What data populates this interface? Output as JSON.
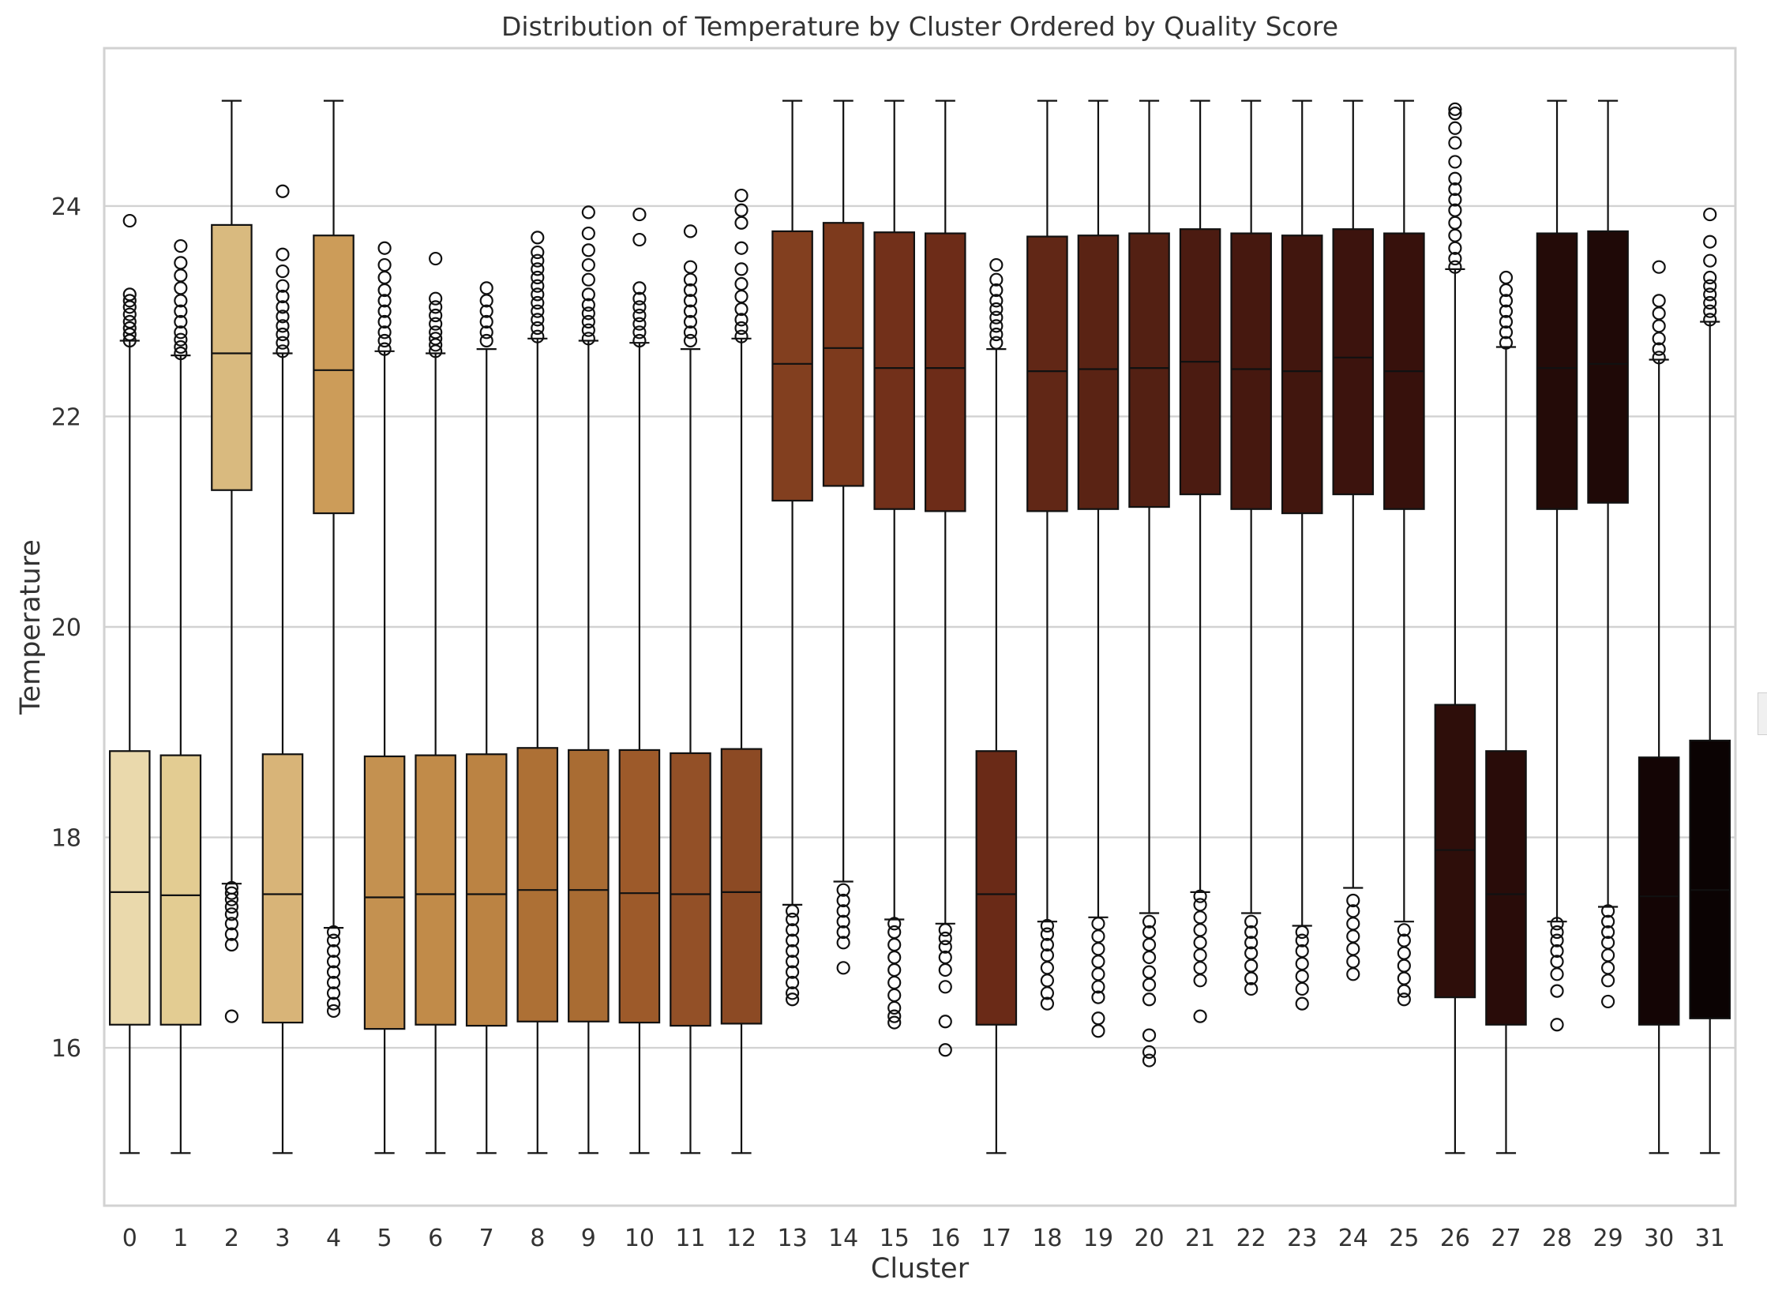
{
  "chart_data": {
    "type": "box",
    "title": "Distribution of Temperature by Cluster Ordered by Quality Score",
    "xlabel": "Cluster",
    "ylabel": "Temperature",
    "ylim": [
      14.5,
      25.5
    ],
    "yticks": [
      16,
      18,
      20,
      22,
      24
    ],
    "grid": true,
    "categories": [
      "0",
      "1",
      "2",
      "3",
      "4",
      "5",
      "6",
      "7",
      "8",
      "9",
      "10",
      "11",
      "12",
      "13",
      "14",
      "15",
      "16",
      "17",
      "18",
      "19",
      "20",
      "21",
      "22",
      "23",
      "24",
      "25",
      "26",
      "27",
      "28",
      "29",
      "30",
      "31"
    ],
    "boxes": [
      {
        "cluster": "0",
        "whisker_low": 15.0,
        "q1": 16.22,
        "median": 17.48,
        "q3": 18.82,
        "whisker_high": 22.72,
        "color": "#ead9ac",
        "outliers_low": [],
        "outliers_high": [
          22.72,
          22.78,
          22.84,
          22.9,
          22.97,
          23.04,
          23.1,
          23.16,
          23.86
        ]
      },
      {
        "cluster": "1",
        "whisker_low": 15.0,
        "q1": 16.22,
        "median": 17.45,
        "q3": 18.78,
        "whisker_high": 22.58,
        "color": "#e3cc92",
        "outliers_low": [],
        "outliers_high": [
          22.6,
          22.66,
          22.73,
          22.8,
          22.9,
          23.0,
          23.1,
          23.22,
          23.34,
          23.46,
          23.62
        ]
      },
      {
        "cluster": "2",
        "whisker_low": 17.56,
        "q1": 21.3,
        "median": 22.6,
        "q3": 23.82,
        "whisker_high": 25.0,
        "color": "#d9ba7f",
        "outliers_low": [
          16.3,
          16.98,
          17.08,
          17.18,
          17.27,
          17.34,
          17.41,
          17.47,
          17.52
        ],
        "outliers_high": []
      },
      {
        "cluster": "3",
        "whisker_low": 15.0,
        "q1": 16.24,
        "median": 17.46,
        "q3": 18.79,
        "whisker_high": 22.6,
        "color": "#d8b478",
        "outliers_low": [],
        "outliers_high": [
          22.62,
          22.7,
          22.78,
          22.86,
          22.95,
          23.04,
          23.14,
          23.24,
          23.38,
          23.54,
          24.14
        ]
      },
      {
        "cluster": "4",
        "whisker_low": 17.14,
        "q1": 21.08,
        "median": 22.44,
        "q3": 23.72,
        "whisker_high": 25.0,
        "color": "#cc9c59",
        "outliers_low": [
          16.35,
          16.42,
          16.52,
          16.62,
          16.72,
          16.82,
          16.92,
          17.02,
          17.1
        ],
        "outliers_high": []
      },
      {
        "cluster": "5",
        "whisker_low": 15.0,
        "q1": 16.18,
        "median": 17.43,
        "q3": 18.77,
        "whisker_high": 22.62,
        "color": "#c49150",
        "outliers_low": [],
        "outliers_high": [
          22.64,
          22.72,
          22.8,
          22.9,
          23.0,
          23.1,
          23.2,
          23.32,
          23.44,
          23.6
        ]
      },
      {
        "cluster": "6",
        "whisker_low": 15.0,
        "q1": 16.22,
        "median": 17.46,
        "q3": 18.78,
        "whisker_high": 22.6,
        "color": "#c18b49",
        "outliers_low": [],
        "outliers_high": [
          22.62,
          22.68,
          22.74,
          22.8,
          22.88,
          22.96,
          23.04,
          23.12,
          23.5
        ]
      },
      {
        "cluster": "7",
        "whisker_low": 15.0,
        "q1": 16.21,
        "median": 17.46,
        "q3": 18.79,
        "whisker_high": 22.64,
        "color": "#bb8343",
        "outliers_low": [],
        "outliers_high": [
          22.72,
          22.8,
          22.9,
          23.0,
          23.1,
          23.22
        ]
      },
      {
        "cluster": "8",
        "whisker_low": 15.0,
        "q1": 16.25,
        "median": 17.5,
        "q3": 18.85,
        "whisker_high": 22.74,
        "color": "#ad7035",
        "outliers_low": [],
        "outliers_high": [
          22.76,
          22.84,
          22.92,
          23.0,
          23.08,
          23.16,
          23.24,
          23.32,
          23.4,
          23.48,
          23.56,
          23.7
        ]
      },
      {
        "cluster": "9",
        "whisker_low": 15.0,
        "q1": 16.25,
        "median": 17.5,
        "q3": 18.83,
        "whisker_high": 22.72,
        "color": "#a96c33",
        "outliers_low": [],
        "outliers_high": [
          22.74,
          22.82,
          22.9,
          22.98,
          23.06,
          23.16,
          23.3,
          23.44,
          23.58,
          23.74,
          23.94
        ]
      },
      {
        "cluster": "10",
        "whisker_low": 15.0,
        "q1": 16.24,
        "median": 17.47,
        "q3": 18.83,
        "whisker_high": 22.7,
        "color": "#9d5a2a",
        "outliers_low": [],
        "outliers_high": [
          22.72,
          22.8,
          22.88,
          22.96,
          23.04,
          23.12,
          23.22,
          23.68,
          23.92
        ]
      },
      {
        "cluster": "11",
        "whisker_low": 15.0,
        "q1": 16.21,
        "median": 17.46,
        "q3": 18.8,
        "whisker_high": 22.64,
        "color": "#935027",
        "outliers_low": [],
        "outliers_high": [
          22.72,
          22.8,
          22.9,
          23.0,
          23.1,
          23.2,
          23.3,
          23.42,
          23.76
        ]
      },
      {
        "cluster": "12",
        "whisker_low": 15.0,
        "q1": 16.23,
        "median": 17.48,
        "q3": 18.84,
        "whisker_high": 22.74,
        "color": "#8c4a24",
        "outliers_low": [],
        "outliers_high": [
          22.76,
          22.84,
          22.92,
          23.02,
          23.14,
          23.26,
          23.4,
          23.6,
          23.84,
          23.96,
          24.1
        ]
      },
      {
        "cluster": "13",
        "whisker_low": 17.36,
        "q1": 21.2,
        "median": 22.5,
        "q3": 23.76,
        "whisker_high": 25.0,
        "color": "#823f1f",
        "outliers_low": [
          16.46,
          16.52,
          16.62,
          16.72,
          16.82,
          16.92,
          17.02,
          17.12,
          17.22,
          17.3
        ],
        "outliers_high": []
      },
      {
        "cluster": "14",
        "whisker_low": 17.58,
        "q1": 21.34,
        "median": 22.65,
        "q3": 23.84,
        "whisker_high": 25.0,
        "color": "#7d3a1d",
        "outliers_low": [
          16.76,
          17.0,
          17.1,
          17.2,
          17.3,
          17.4,
          17.5
        ],
        "outliers_high": []
      },
      {
        "cluster": "15",
        "whisker_low": 17.22,
        "q1": 21.12,
        "median": 22.46,
        "q3": 23.75,
        "whisker_high": 25.0,
        "color": "#72301a",
        "outliers_low": [
          16.24,
          16.3,
          16.38,
          16.5,
          16.62,
          16.74,
          16.86,
          16.98,
          17.1,
          17.18
        ],
        "outliers_high": []
      },
      {
        "cluster": "16",
        "whisker_low": 17.18,
        "q1": 21.1,
        "median": 22.46,
        "q3": 23.74,
        "whisker_high": 25.0,
        "color": "#6d2c18",
        "outliers_low": [
          15.98,
          16.25,
          16.58,
          16.74,
          16.86,
          16.96,
          17.04,
          17.12
        ],
        "outliers_high": []
      },
      {
        "cluster": "17",
        "whisker_low": 15.0,
        "q1": 16.22,
        "median": 17.46,
        "q3": 18.82,
        "whisker_high": 22.64,
        "color": "#6a2a17",
        "outliers_low": [],
        "outliers_high": [
          22.7,
          22.78,
          22.86,
          22.94,
          23.02,
          23.1,
          23.2,
          23.3,
          23.44
        ]
      },
      {
        "cluster": "18",
        "whisker_low": 17.2,
        "q1": 21.1,
        "median": 22.43,
        "q3": 23.71,
        "whisker_high": 25.0,
        "color": "#612716",
        "outliers_low": [
          16.42,
          16.52,
          16.64,
          16.76,
          16.88,
          16.98,
          17.08,
          17.16
        ],
        "outliers_high": []
      },
      {
        "cluster": "19",
        "whisker_low": 17.24,
        "q1": 21.12,
        "median": 22.45,
        "q3": 23.72,
        "whisker_high": 25.0,
        "color": "#5a2314",
        "outliers_low": [
          16.16,
          16.28,
          16.48,
          16.58,
          16.7,
          16.82,
          16.94,
          17.06,
          17.18
        ],
        "outliers_high": []
      },
      {
        "cluster": "20",
        "whisker_low": 17.28,
        "q1": 21.14,
        "median": 22.46,
        "q3": 23.74,
        "whisker_high": 25.0,
        "color": "#532013",
        "outliers_low": [
          15.88,
          15.96,
          16.12,
          16.46,
          16.6,
          16.72,
          16.86,
          16.98,
          17.1,
          17.2
        ],
        "outliers_high": []
      },
      {
        "cluster": "21",
        "whisker_low": 17.48,
        "q1": 21.26,
        "median": 22.52,
        "q3": 23.78,
        "whisker_high": 25.0,
        "color": "#4b1b11",
        "outliers_low": [
          16.3,
          16.64,
          16.76,
          16.88,
          17.0,
          17.12,
          17.24,
          17.36,
          17.44
        ],
        "outliers_high": []
      },
      {
        "cluster": "22",
        "whisker_low": 17.28,
        "q1": 21.12,
        "median": 22.45,
        "q3": 23.74,
        "whisker_high": 25.0,
        "color": "#46180f",
        "outliers_low": [
          16.56,
          16.66,
          16.78,
          16.9,
          17.0,
          17.1,
          17.2
        ],
        "outliers_high": []
      },
      {
        "cluster": "23",
        "whisker_low": 17.16,
        "q1": 21.08,
        "median": 22.43,
        "q3": 23.72,
        "whisker_high": 25.0,
        "color": "#41160e",
        "outliers_low": [
          16.42,
          16.56,
          16.68,
          16.8,
          16.92,
          17.02,
          17.1
        ],
        "outliers_high": []
      },
      {
        "cluster": "24",
        "whisker_low": 17.52,
        "q1": 21.26,
        "median": 22.56,
        "q3": 23.78,
        "whisker_high": 25.0,
        "color": "#3c130d",
        "outliers_low": [
          16.7,
          16.82,
          16.94,
          17.06,
          17.18,
          17.3,
          17.4
        ],
        "outliers_high": []
      },
      {
        "cluster": "25",
        "whisker_low": 17.2,
        "q1": 21.12,
        "median": 22.43,
        "q3": 23.74,
        "whisker_high": 25.0,
        "color": "#37110c",
        "outliers_low": [
          16.46,
          16.54,
          16.66,
          16.78,
          16.9,
          17.02,
          17.12
        ],
        "outliers_high": []
      },
      {
        "cluster": "26",
        "whisker_low": 15.0,
        "q1": 16.48,
        "median": 17.88,
        "q3": 19.26,
        "whisker_high": 23.4,
        "color": "#2e0e0a",
        "outliers_low": [],
        "outliers_high": [
          23.42,
          23.5,
          23.6,
          23.72,
          23.84,
          23.96,
          24.06,
          24.16,
          24.26,
          24.42,
          24.6,
          24.74,
          24.88,
          24.92
        ]
      },
      {
        "cluster": "27",
        "whisker_low": 15.0,
        "q1": 16.22,
        "median": 17.46,
        "q3": 18.82,
        "whisker_high": 22.66,
        "color": "#290c09",
        "outliers_low": [],
        "outliers_high": [
          22.7,
          22.8,
          22.9,
          23.0,
          23.1,
          23.2,
          23.32
        ]
      },
      {
        "cluster": "28",
        "whisker_low": 17.2,
        "q1": 21.12,
        "median": 22.46,
        "q3": 23.74,
        "whisker_high": 25.0,
        "color": "#240b08",
        "outliers_low": [
          16.22,
          16.54,
          16.7,
          16.82,
          16.92,
          17.02,
          17.1,
          17.18
        ],
        "outliers_high": []
      },
      {
        "cluster": "29",
        "whisker_low": 17.34,
        "q1": 21.18,
        "median": 22.5,
        "q3": 23.76,
        "whisker_high": 25.0,
        "color": "#1f0907",
        "outliers_low": [
          16.44,
          16.64,
          16.76,
          16.88,
          17.0,
          17.1,
          17.2,
          17.3
        ],
        "outliers_high": []
      },
      {
        "cluster": "30",
        "whisker_low": 15.0,
        "q1": 16.22,
        "median": 17.44,
        "q3": 18.76,
        "whisker_high": 22.54,
        "color": "#140505",
        "outliers_low": [],
        "outliers_high": [
          22.56,
          22.64,
          22.74,
          22.86,
          22.98,
          23.1,
          23.42
        ]
      },
      {
        "cluster": "31",
        "whisker_low": 15.0,
        "q1": 16.28,
        "median": 17.5,
        "q3": 18.92,
        "whisker_high": 22.9,
        "color": "#0b0303",
        "outliers_low": [],
        "outliers_high": [
          22.92,
          23.0,
          23.08,
          23.16,
          23.24,
          23.32,
          23.48,
          23.66,
          23.92
        ]
      }
    ]
  }
}
